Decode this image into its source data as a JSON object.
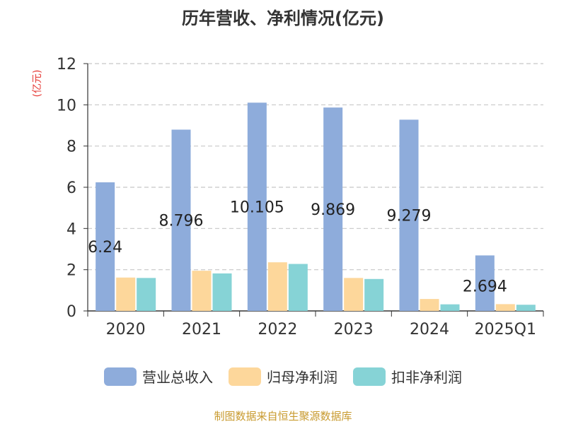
{
  "title": "历年营收、净利情况(亿元)",
  "unit_label": "(亿元)",
  "unit_color": "#e53935",
  "source": "制图数据来自恒生聚源数据库",
  "source_color": "#c89a2e",
  "legend": [
    {
      "name": "营业总收入",
      "color": "#8eacdb"
    },
    {
      "name": "归母净利润",
      "color": "#fdd79b"
    },
    {
      "name": "扣非净利润",
      "color": "#86d3d6"
    }
  ],
  "chart_data": {
    "type": "bar",
    "title": "历年营收、净利情况(亿元)",
    "ylabel": "(亿元)",
    "ylim": [
      0,
      12
    ],
    "yticks": [
      0,
      2,
      4,
      6,
      8,
      10,
      12
    ],
    "grid": true,
    "legend_position": "bottom",
    "categories": [
      "2020",
      "2021",
      "2022",
      "2023",
      "2024",
      "2025Q1"
    ],
    "series": [
      {
        "name": "营业总收入",
        "color": "#8eacdb",
        "values": [
          6.24,
          8.796,
          10.105,
          9.869,
          9.279,
          2.694
        ],
        "labels": [
          "6.24",
          "8.796",
          "10.105",
          "9.869",
          "9.279",
          "2.694"
        ]
      },
      {
        "name": "归母净利润",
        "color": "#fdd79b",
        "values": [
          1.62,
          1.95,
          2.36,
          1.6,
          0.58,
          0.33
        ]
      },
      {
        "name": "扣非净利润",
        "color": "#86d3d6",
        "values": [
          1.6,
          1.82,
          2.28,
          1.55,
          0.32,
          0.3
        ]
      }
    ]
  }
}
